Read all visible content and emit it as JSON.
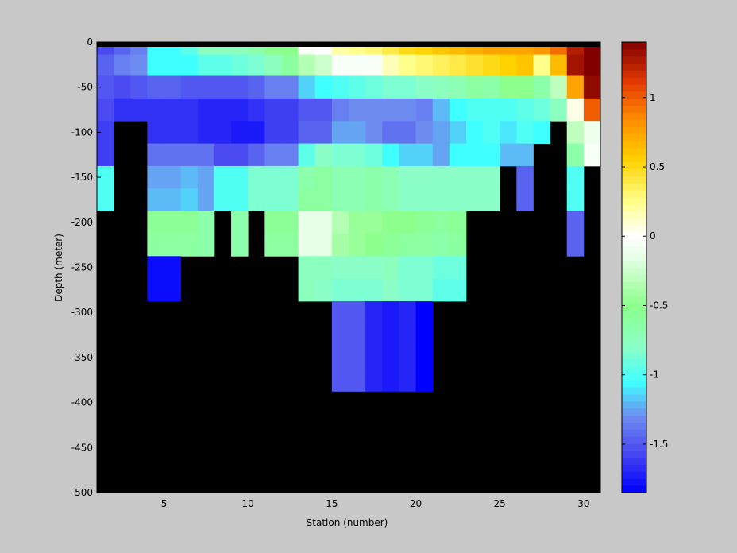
{
  "chart_data": {
    "type": "heatmap",
    "title": "",
    "xlabel": "Station (number)",
    "ylabel": "Depth (meter)",
    "xlim": [
      1,
      31
    ],
    "ylim": [
      -500,
      0
    ],
    "xticks": [
      "5",
      "10",
      "15",
      "20",
      "25",
      "30"
    ],
    "yticks": [
      "0",
      "-50",
      "-100",
      "-150",
      "-200",
      "-250",
      "-300",
      "-350",
      "-400",
      "-450",
      "-500"
    ],
    "colorbar": {
      "range": [
        -1.85,
        1.4
      ],
      "ticks": [
        "1",
        "0.5",
        "0",
        "-0.5",
        "-1",
        "-1.5"
      ]
    },
    "stations": [
      1,
      2,
      3,
      4,
      5,
      6,
      7,
      8,
      9,
      10,
      11,
      12,
      13,
      14,
      15,
      16,
      17,
      18,
      19,
      20,
      21,
      22,
      23,
      24,
      25,
      26,
      27,
      28,
      29,
      30
    ],
    "depths": [
      -2.5,
      -25,
      -50,
      -75,
      -100,
      -125,
      -150,
      -175,
      -200,
      -225,
      -250,
      -275,
      -300,
      -325,
      -350,
      -375,
      -400,
      -425,
      -450,
      -475,
      -500
    ],
    "values": [
      [
        -1.55,
        -1.45,
        -1.35,
        -1.05,
        -1.05,
        -0.95,
        -0.75,
        -0.75,
        -0.75,
        -0.65,
        -0.5,
        -0.5,
        -0.05,
        0.0,
        0.2,
        0.25,
        0.3,
        0.4,
        0.5,
        0.55,
        0.6,
        0.65,
        0.7,
        0.75,
        0.75,
        0.75,
        0.8,
        0.95,
        1.25,
        1.4
      ],
      [
        -1.45,
        -1.35,
        -1.3,
        -1.05,
        -1.05,
        -1.05,
        -0.95,
        -0.95,
        -0.9,
        -0.85,
        -0.75,
        -0.6,
        -0.35,
        -0.25,
        -0.05,
        -0.05,
        -0.05,
        0.15,
        0.25,
        0.3,
        0.35,
        0.4,
        0.45,
        0.5,
        0.55,
        0.6,
        0.25,
        0.65,
        1.3,
        1.4
      ],
      [
        -1.5,
        -1.55,
        -1.5,
        -1.45,
        -1.45,
        -1.5,
        -1.5,
        -1.5,
        -1.5,
        -1.45,
        -1.35,
        -1.35,
        -1.15,
        -1.05,
        -1.0,
        -0.95,
        -0.9,
        -0.85,
        -0.85,
        -0.8,
        -0.75,
        -0.7,
        -0.6,
        -0.65,
        -0.5,
        -0.5,
        -0.65,
        -0.3,
        0.75,
        1.35
      ],
      [
        -1.55,
        -1.65,
        -1.65,
        -1.65,
        -1.65,
        -1.65,
        -1.7,
        -1.7,
        -1.7,
        -1.65,
        -1.6,
        -1.6,
        -1.5,
        -1.5,
        -1.35,
        -1.3,
        -1.3,
        -1.3,
        -1.3,
        -1.35,
        -1.2,
        -1.05,
        -1.0,
        -1.0,
        -1.0,
        -0.95,
        -0.9,
        -0.75,
        0.05,
        1.0
      ],
      [
        -1.6,
        null,
        null,
        -1.65,
        -1.65,
        -1.65,
        -1.7,
        -1.7,
        -1.75,
        -1.75,
        -1.6,
        -1.6,
        -1.45,
        -1.45,
        -1.25,
        -1.25,
        -1.3,
        -1.4,
        -1.4,
        -1.3,
        -1.25,
        -1.15,
        -1.05,
        -1.0,
        -1.1,
        -1.0,
        -1.05,
        null,
        -0.3,
        -0.1
      ],
      [
        -1.6,
        null,
        null,
        -1.4,
        -1.4,
        -1.4,
        -1.4,
        -1.55,
        -1.55,
        -1.45,
        -1.35,
        -1.35,
        -0.95,
        -0.8,
        -0.85,
        -0.85,
        -0.9,
        -1.05,
        -1.15,
        -1.15,
        -1.25,
        -1.05,
        -1.05,
        -1.05,
        -1.2,
        -1.2,
        null,
        null,
        -0.65,
        -0.05
      ],
      [
        -1.0,
        null,
        null,
        -1.25,
        -1.25,
        -1.2,
        -1.25,
        -1.0,
        -1.0,
        -0.85,
        -0.85,
        -0.85,
        -0.65,
        -0.6,
        -0.7,
        -0.7,
        -0.65,
        -0.7,
        -0.8,
        -0.8,
        -0.8,
        -0.8,
        -0.8,
        -0.8,
        null,
        -1.45,
        null,
        null,
        -1.0,
        null
      ],
      [
        -1.0,
        null,
        null,
        -1.2,
        -1.2,
        -1.15,
        -1.25,
        -1.0,
        -1.0,
        -0.85,
        -0.85,
        -0.85,
        -0.6,
        -0.6,
        -0.7,
        -0.7,
        -0.65,
        -0.7,
        -0.8,
        -0.8,
        -0.8,
        -0.8,
        -0.8,
        -0.8,
        null,
        -1.45,
        null,
        null,
        -1.0,
        null
      ],
      [
        null,
        null,
        null,
        -0.55,
        -0.55,
        -0.55,
        -0.65,
        null,
        -0.65,
        null,
        -0.55,
        -0.55,
        -0.15,
        -0.15,
        -0.35,
        -0.45,
        -0.45,
        -0.5,
        -0.5,
        -0.55,
        -0.6,
        -0.55,
        null,
        null,
        null,
        null,
        null,
        null,
        -1.45,
        null
      ],
      [
        null,
        null,
        null,
        -0.6,
        -0.6,
        -0.6,
        -0.65,
        null,
        -0.65,
        null,
        -0.6,
        -0.6,
        -0.15,
        -0.15,
        -0.4,
        -0.45,
        -0.5,
        -0.55,
        -0.6,
        -0.6,
        -0.65,
        -0.6,
        null,
        null,
        null,
        null,
        null,
        null,
        -1.45,
        null
      ],
      [
        null,
        null,
        null,
        -1.8,
        -1.8,
        null,
        null,
        null,
        null,
        null,
        null,
        null,
        -0.75,
        -0.75,
        -0.8,
        -0.8,
        -0.8,
        -0.75,
        -0.85,
        -0.85,
        -0.9,
        -0.9,
        null,
        null,
        null,
        null,
        null,
        null,
        null,
        null
      ],
      [
        null,
        null,
        null,
        -1.8,
        -1.8,
        null,
        null,
        null,
        null,
        null,
        null,
        null,
        -0.75,
        -0.8,
        -0.85,
        -0.85,
        -0.85,
        -0.8,
        -0.85,
        -0.85,
        -0.95,
        -0.95,
        null,
        null,
        null,
        null,
        null,
        null,
        null,
        null
      ],
      [
        null,
        null,
        null,
        null,
        null,
        null,
        null,
        null,
        null,
        null,
        null,
        null,
        null,
        null,
        -1.5,
        -1.5,
        -1.7,
        -1.75,
        -1.7,
        -1.85,
        null,
        null,
        null,
        null,
        null,
        null,
        null,
        null,
        null,
        null
      ],
      [
        null,
        null,
        null,
        null,
        null,
        null,
        null,
        null,
        null,
        null,
        null,
        null,
        null,
        null,
        -1.5,
        -1.5,
        -1.7,
        -1.75,
        -1.7,
        -1.85,
        null,
        null,
        null,
        null,
        null,
        null,
        null,
        null,
        null,
        null
      ],
      [
        null,
        null,
        null,
        null,
        null,
        null,
        null,
        null,
        null,
        null,
        null,
        null,
        null,
        null,
        -1.5,
        -1.5,
        -1.7,
        -1.75,
        -1.7,
        -1.85,
        null,
        null,
        null,
        null,
        null,
        null,
        null,
        null,
        null,
        null
      ],
      [
        null,
        null,
        null,
        null,
        null,
        null,
        null,
        null,
        null,
        null,
        null,
        null,
        null,
        null,
        -1.5,
        -1.5,
        -1.7,
        -1.75,
        -1.7,
        -1.85,
        null,
        null,
        null,
        null,
        null,
        null,
        null,
        null,
        null,
        null
      ],
      [
        null,
        null,
        null,
        null,
        null,
        null,
        null,
        null,
        null,
        null,
        null,
        null,
        null,
        null,
        null,
        null,
        null,
        null,
        null,
        null,
        null,
        null,
        null,
        null,
        null,
        null,
        null,
        null,
        null,
        null
      ],
      [
        null,
        null,
        null,
        null,
        null,
        null,
        null,
        null,
        null,
        null,
        null,
        null,
        null,
        null,
        null,
        null,
        null,
        null,
        null,
        null,
        null,
        null,
        null,
        null,
        null,
        null,
        null,
        null,
        null,
        null
      ],
      [
        null,
        null,
        null,
        null,
        null,
        null,
        null,
        null,
        null,
        null,
        null,
        null,
        null,
        null,
        null,
        null,
        null,
        null,
        null,
        null,
        null,
        null,
        null,
        null,
        null,
        null,
        null,
        null,
        null,
        null
      ],
      [
        null,
        null,
        null,
        null,
        null,
        null,
        null,
        null,
        null,
        null,
        null,
        null,
        null,
        null,
        null,
        null,
        null,
        null,
        null,
        null,
        null,
        null,
        null,
        null,
        null,
        null,
        null,
        null,
        null,
        null
      ],
      [
        null,
        null,
        null,
        null,
        null,
        null,
        null,
        null,
        null,
        null,
        null,
        null,
        null,
        null,
        null,
        null,
        null,
        null,
        null,
        null,
        null,
        null,
        null,
        null,
        null,
        null,
        null,
        null,
        null,
        null
      ]
    ],
    "nodata_color": "#000000",
    "colormap": "jet-like with white at zero",
    "grid": false,
    "legend": "colorbar-right"
  }
}
